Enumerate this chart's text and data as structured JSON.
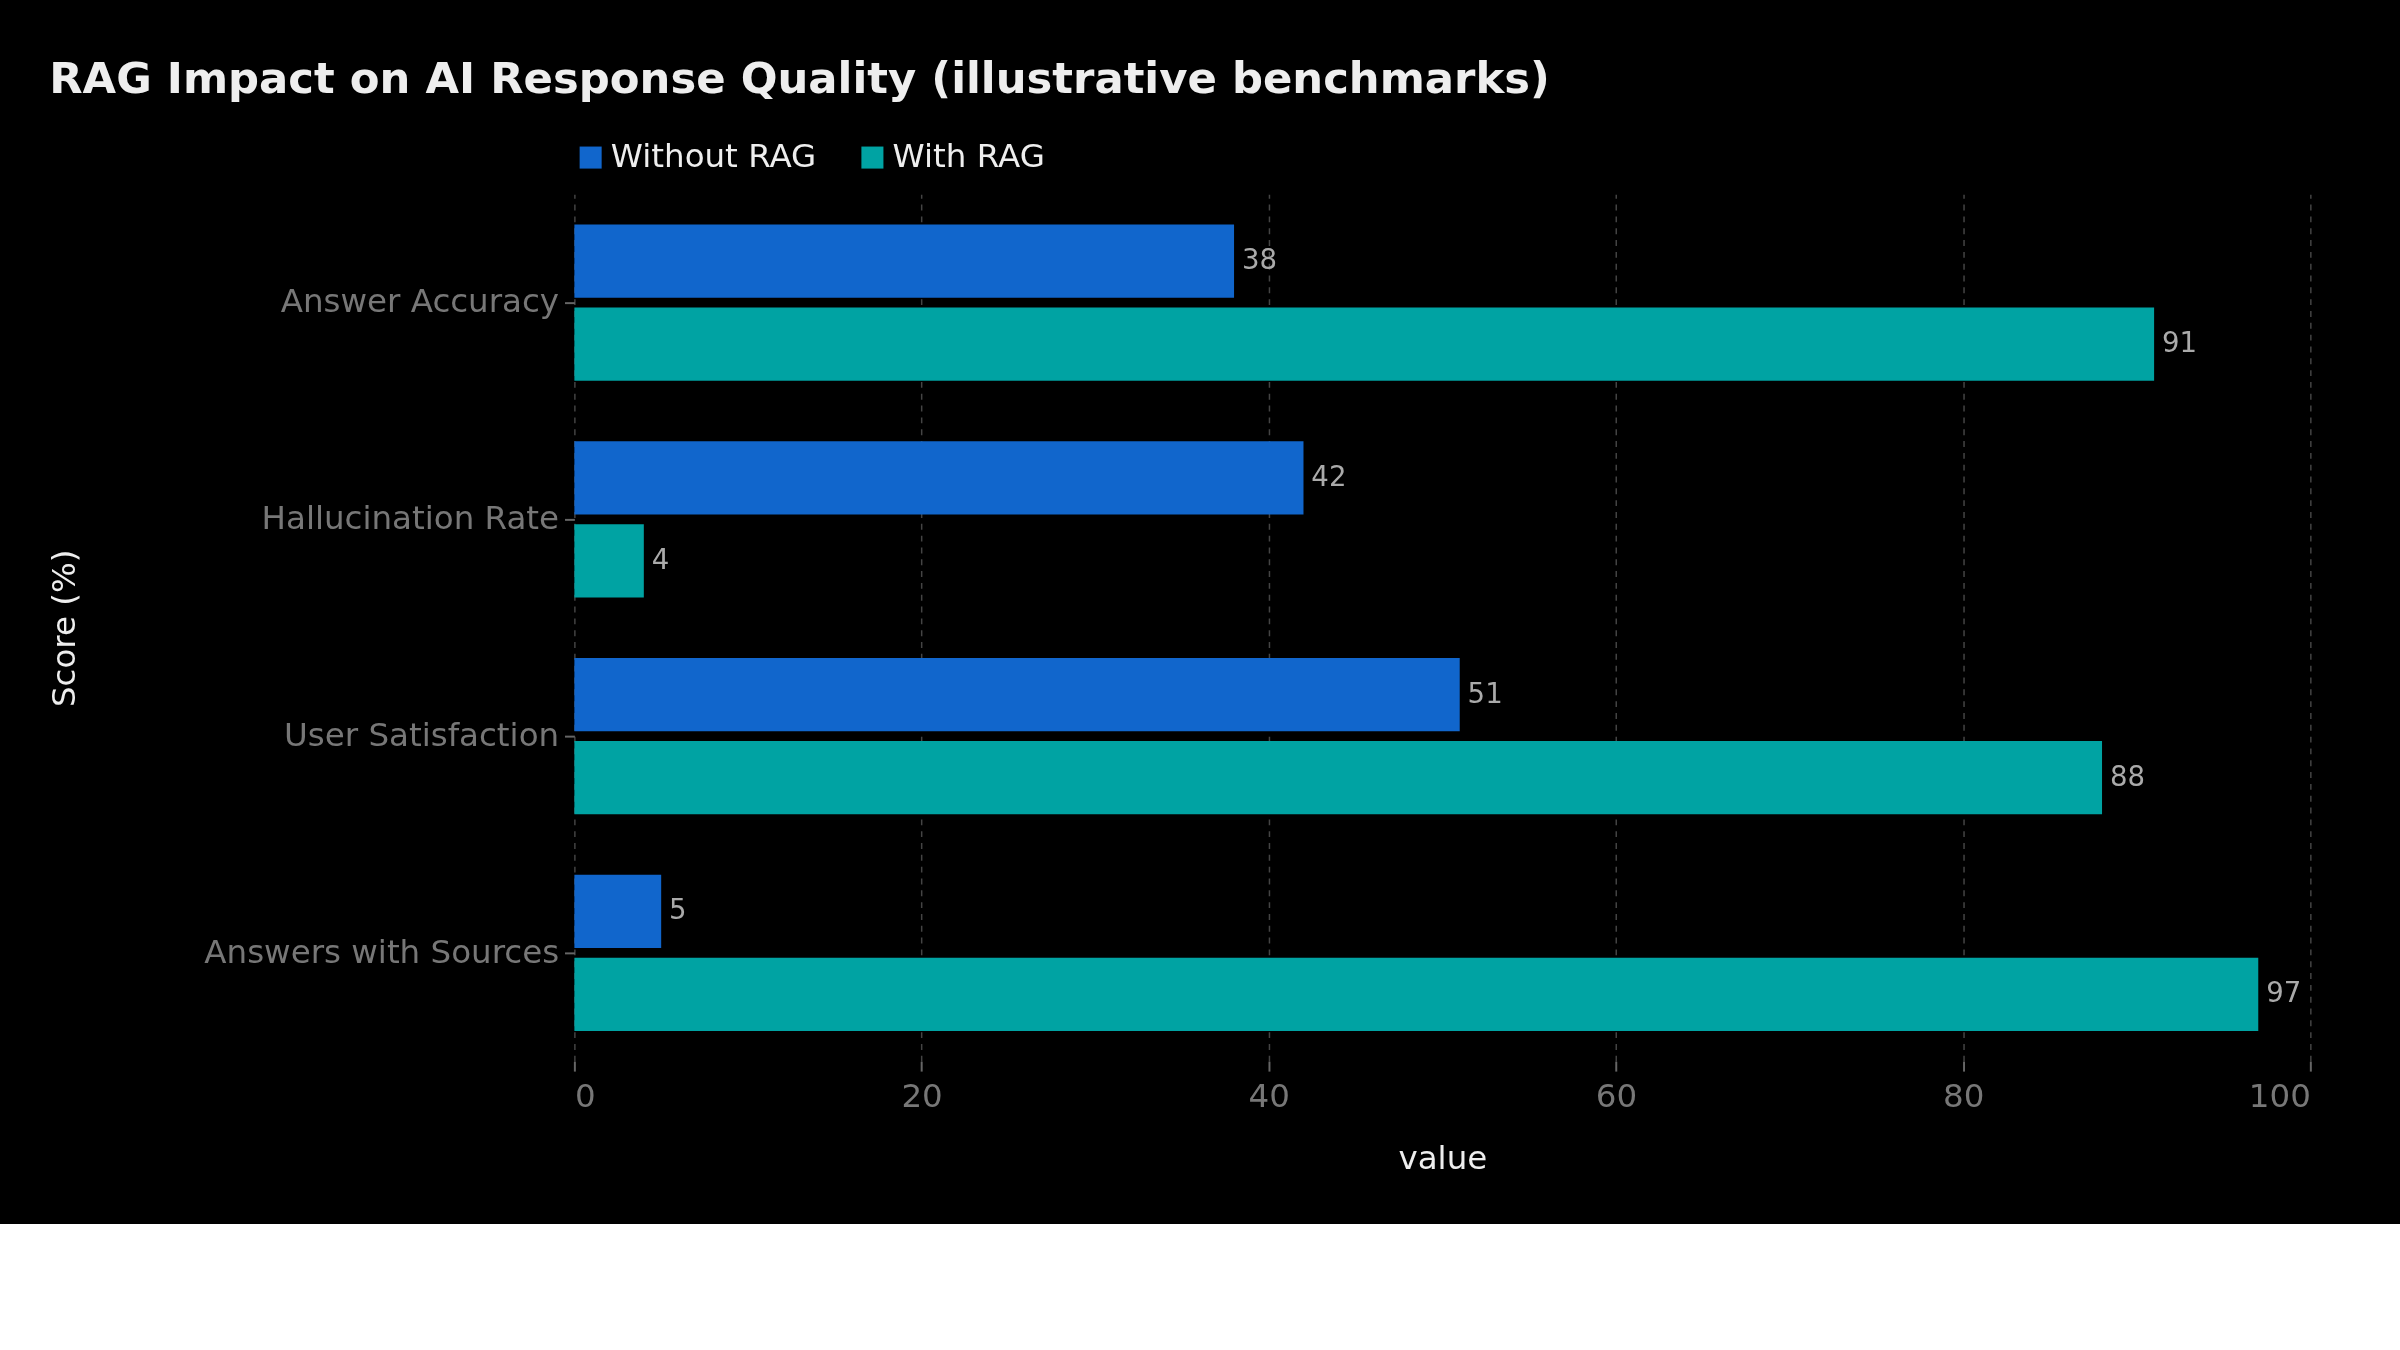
{
  "chart_data": {
    "type": "bar",
    "orientation": "horizontal",
    "title": "RAG Impact on AI Response Quality (illustrative benchmarks)",
    "xlabel": "value",
    "ylabel": "Score (%)",
    "categories": [
      "Answer Accuracy",
      "Hallucination Rate",
      "User Satisfaction",
      "Answers with Sources"
    ],
    "series": [
      {
        "name": "Without RAG",
        "color": "#1166cc",
        "values": [
          38,
          42,
          51,
          5
        ]
      },
      {
        "name": "With RAG",
        "color": "#00a3a3",
        "values": [
          91,
          4,
          88,
          97
        ]
      }
    ],
    "xlim": [
      0,
      100
    ],
    "xticks": [
      0,
      20,
      40,
      60,
      80,
      100
    ],
    "grid": "x",
    "legend": "top left",
    "data_labels": true
  }
}
